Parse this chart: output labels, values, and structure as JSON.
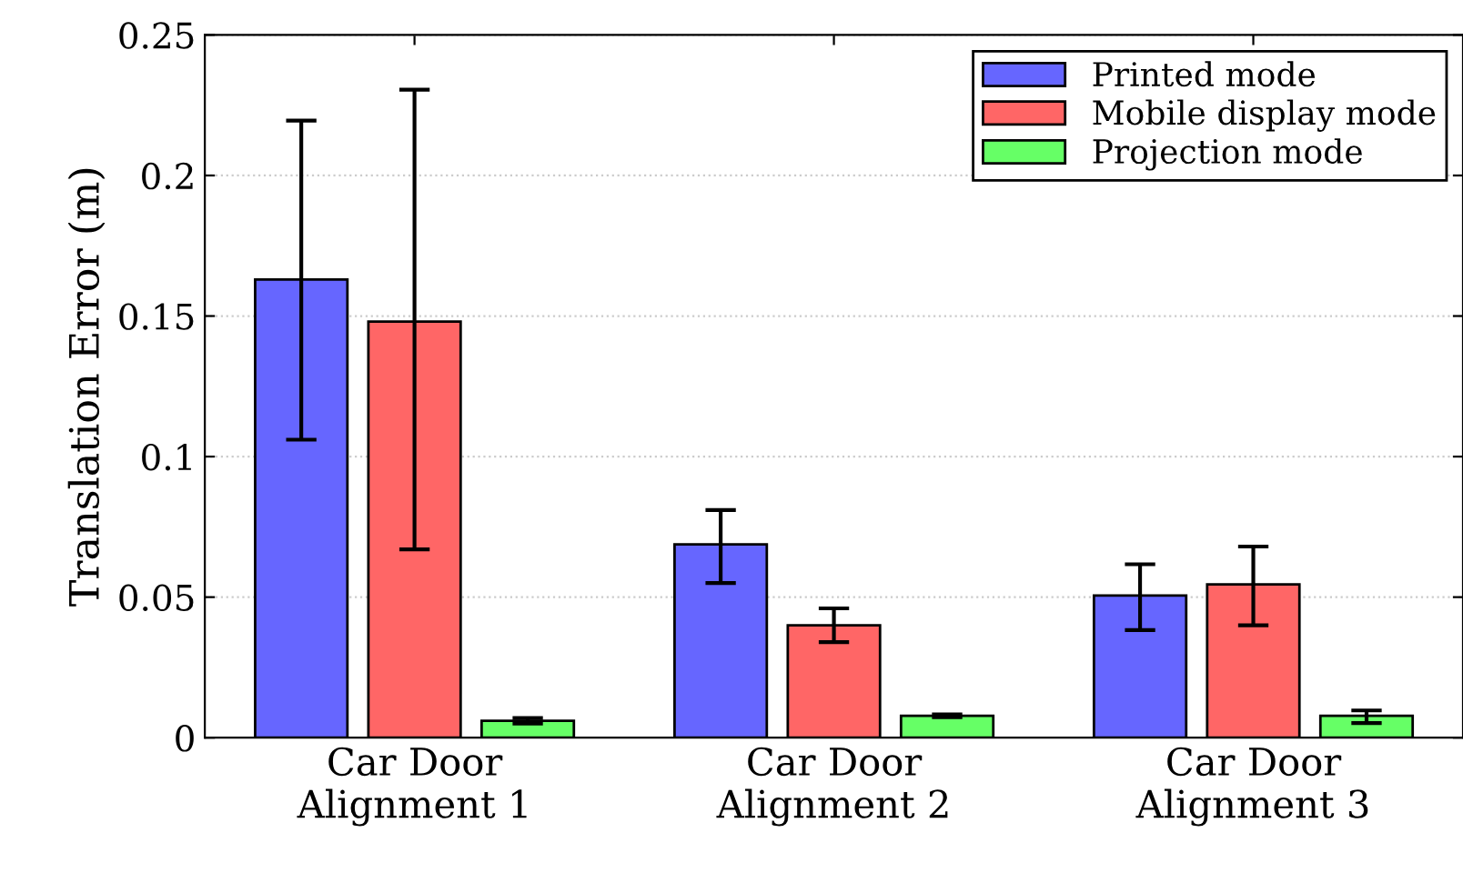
{
  "chart_data": {
    "type": "bar",
    "ylabel": "Translation Error (m)",
    "categories": [
      "Car Door\nAlignment 1",
      "Car Door\nAlignment 2",
      "Car Door\nAlignment 3"
    ],
    "series": [
      {
        "name": "Printed mode",
        "color": "#6666ff",
        "values": [
          0.163,
          0.0688,
          0.0506
        ],
        "errors": [
          [
            0.106,
            0.2195
          ],
          [
            0.055,
            0.081
          ],
          [
            0.0383,
            0.0617
          ]
        ]
      },
      {
        "name": "Mobile display mode",
        "color": "#ff6666",
        "values": [
          0.148,
          0.04,
          0.0545
        ],
        "errors": [
          [
            0.067,
            0.2305
          ],
          [
            0.034,
            0.046
          ],
          [
            0.04,
            0.068
          ]
        ]
      },
      {
        "name": "Projection mode",
        "color": "#66ff66",
        "values": [
          0.006,
          0.0078,
          0.0078
        ],
        "errors": [
          [
            0.005,
            0.007
          ],
          [
            0.0073,
            0.0083
          ],
          [
            0.0052,
            0.0097
          ]
        ]
      }
    ],
    "ylim": [
      0,
      0.25
    ],
    "yticks": [
      0,
      {
        "value": 0.05,
        "label": "0.05"
      },
      {
        "value": 0.1,
        "label": "0.1"
      },
      {
        "value": 0.15,
        "label": "0.15"
      },
      {
        "value": 0.2,
        "label": "0.2"
      },
      {
        "value": 0.25,
        "label": "0.25"
      }
    ],
    "grid": "y",
    "legend": "top right"
  }
}
